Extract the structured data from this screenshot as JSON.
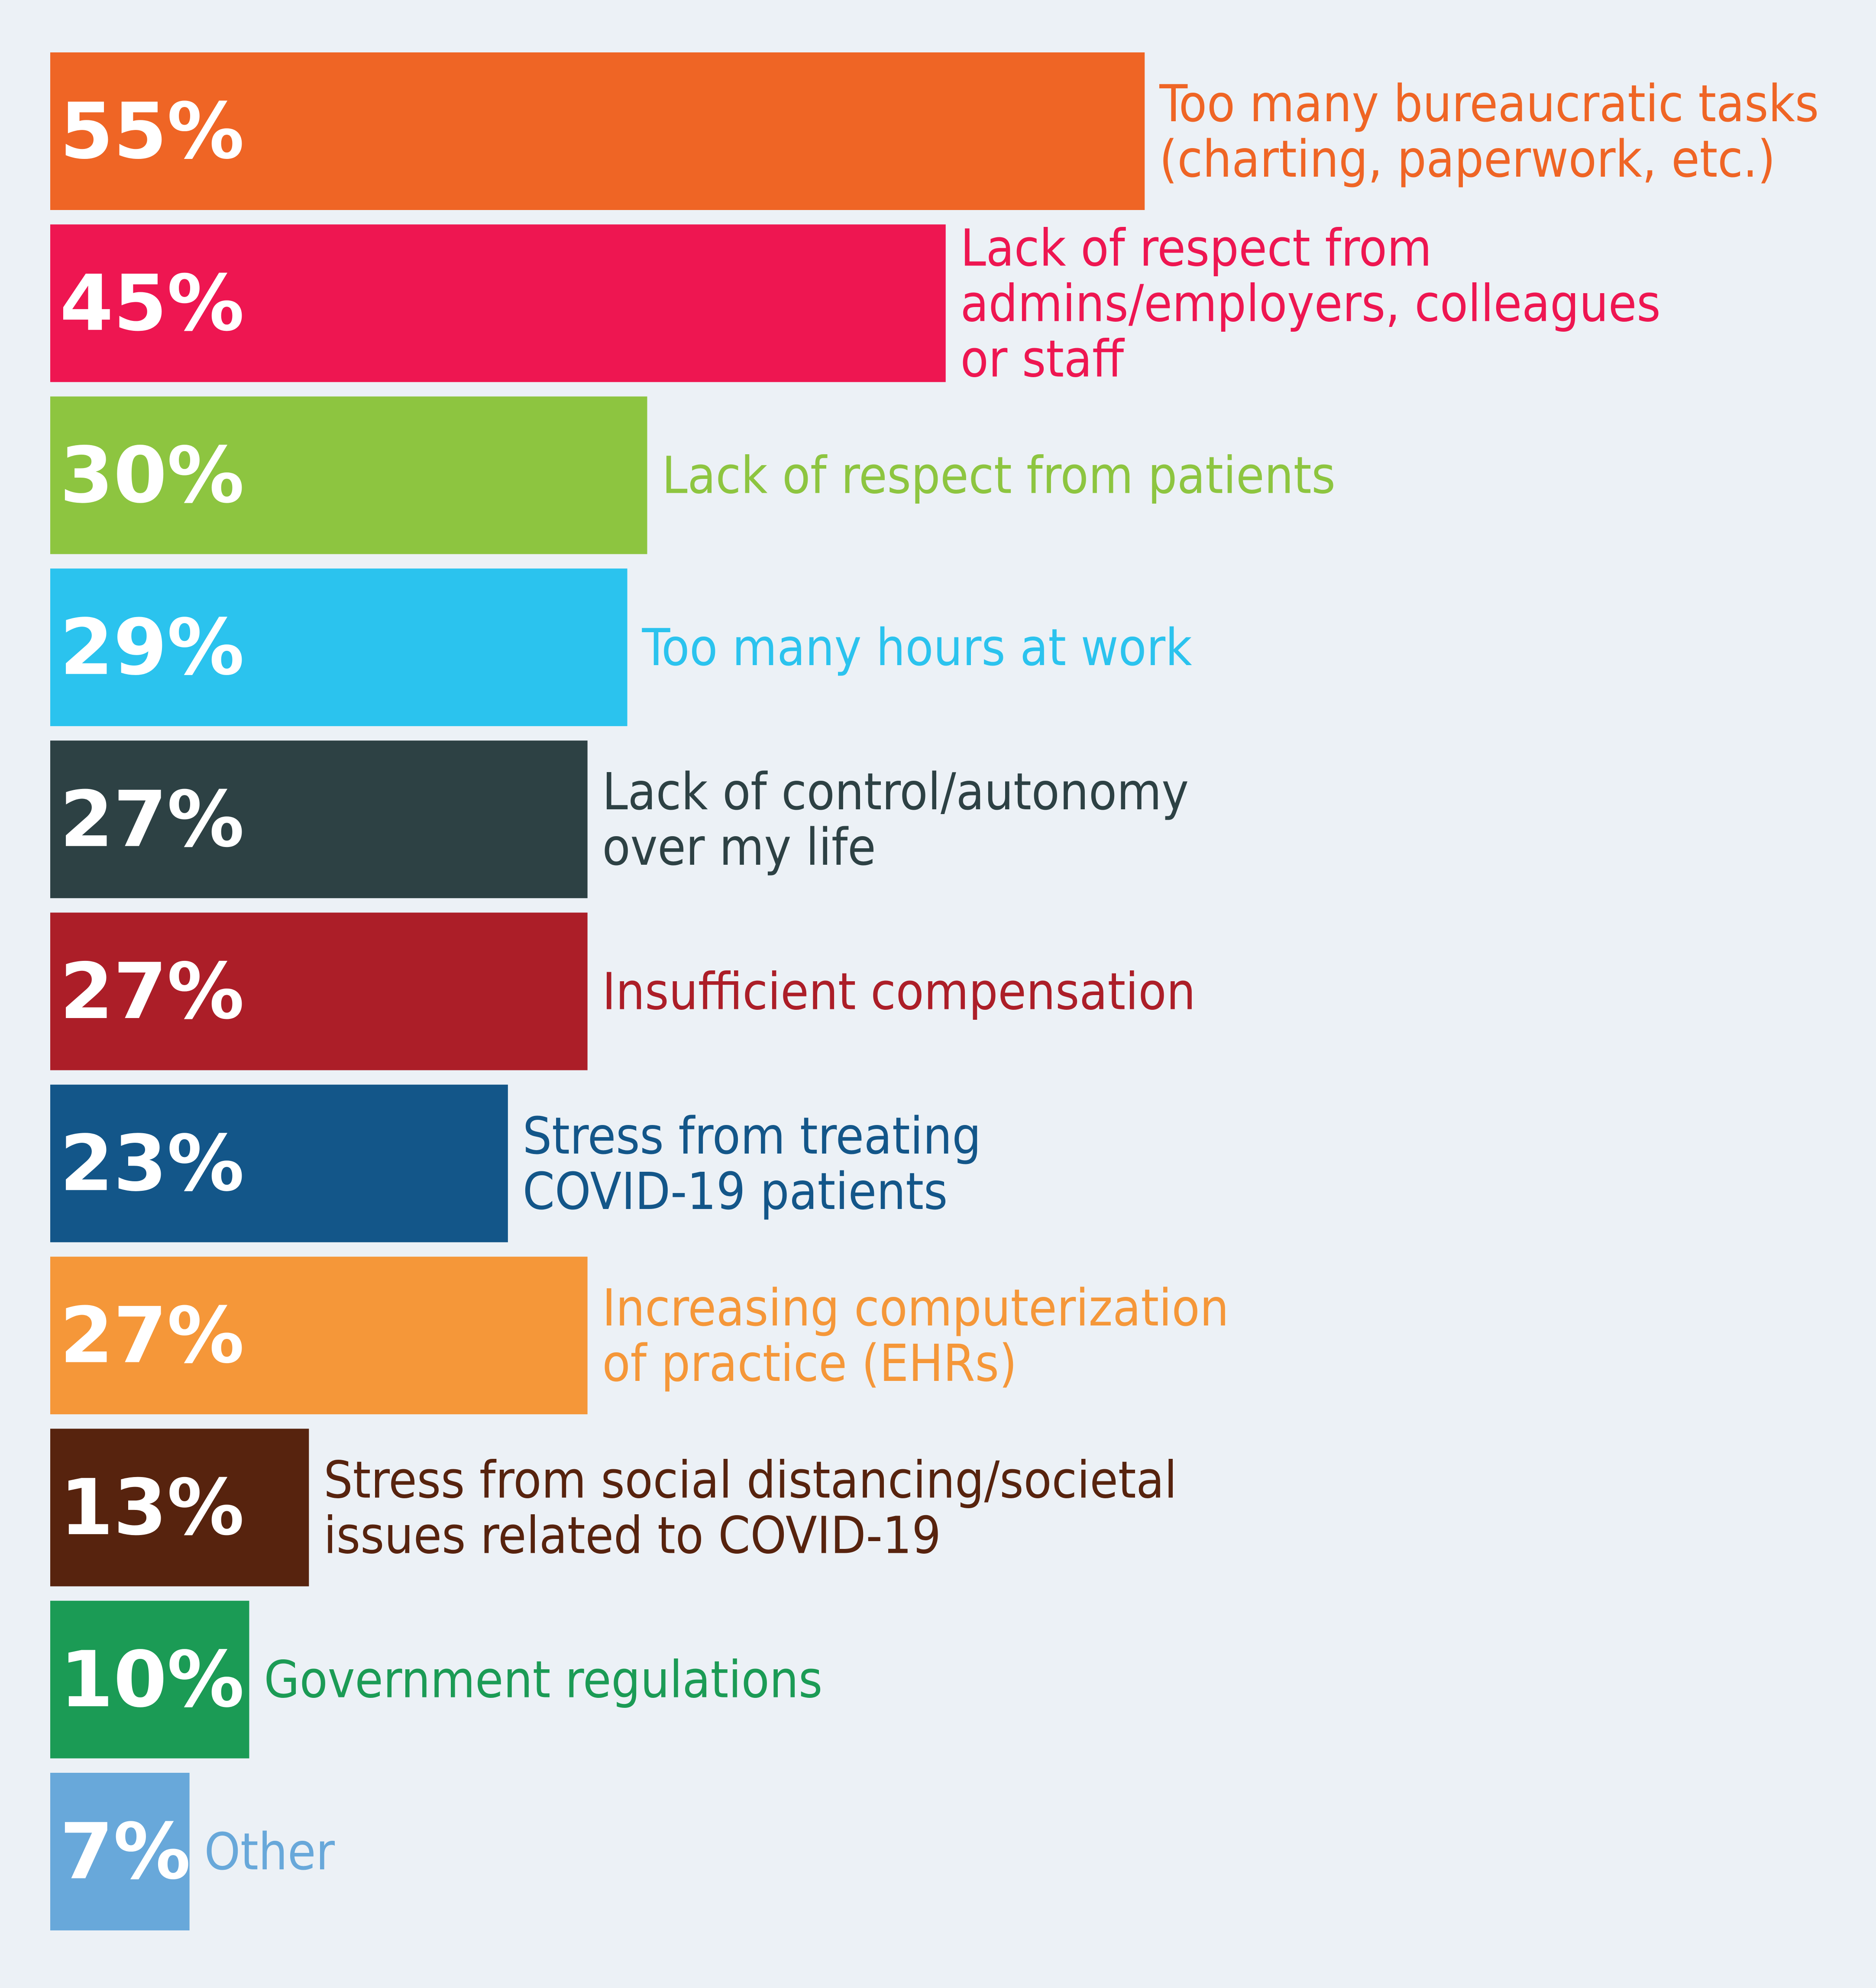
{
  "chart_data": {
    "type": "bar",
    "orientation": "horizontal",
    "value_suffix": "%",
    "grid": false,
    "legend": "none",
    "background": "#ecf1f6",
    "categories": [
      "Too many bureaucratic tasks (charting, paperwork, etc.)",
      "Lack of respect from admins/employers, colleagues or staff",
      "Lack of respect from patients",
      "Too many hours at work",
      "Lack of control/autonomy over my life",
      "Insufficient compensation",
      "Stress from treating COVID-19 patients",
      "Increasing computerization of practice (EHRs)",
      "Stress from social distancing/societal issues related to COVID-19",
      "Government regulations",
      "Other"
    ],
    "values": [
      55,
      45,
      30,
      29,
      27,
      27,
      23,
      27,
      13,
      10,
      7
    ],
    "xlim": [
      0,
      55
    ],
    "bars": [
      {
        "value_label": "55%",
        "label_lines": [
          "Too many bureaucratic tasks",
          "(charting, paperwork, etc.)"
        ],
        "color": "#ef6525"
      },
      {
        "value_label": "45%",
        "label_lines": [
          "Lack of respect from",
          "admins/employers, colleagues",
          "or staff"
        ],
        "color": "#ee1651"
      },
      {
        "value_label": "30%",
        "label_lines": [
          "Lack of respect from patients"
        ],
        "color": "#8dc540"
      },
      {
        "value_label": "29%",
        "label_lines": [
          "Too many hours at work"
        ],
        "color": "#2bc3ee"
      },
      {
        "value_label": "27%",
        "label_lines": [
          "Lack of control/autonomy",
          "over my life"
        ],
        "color": "#2d4144"
      },
      {
        "value_label": "27%",
        "label_lines": [
          "Insufficient compensation"
        ],
        "color": "#ac1e28"
      },
      {
        "value_label": "23%",
        "label_lines": [
          "Stress from treating",
          "COVID-19 patients"
        ],
        "color": "#135689"
      },
      {
        "value_label": "27%",
        "label_lines": [
          "Increasing computerization",
          "of practice (EHRs)"
        ],
        "color": "#f59739"
      },
      {
        "value_label": "13%",
        "label_lines": [
          "Stress from social distancing/societal",
          "issues related to COVID-19"
        ],
        "color": "#57230e"
      },
      {
        "value_label": "10%",
        "label_lines": [
          "Government regulations"
        ],
        "color": "#1b9b55"
      },
      {
        "value_label": "7%",
        "label_lines": [
          "Other"
        ],
        "color": "#68a8da"
      }
    ]
  }
}
